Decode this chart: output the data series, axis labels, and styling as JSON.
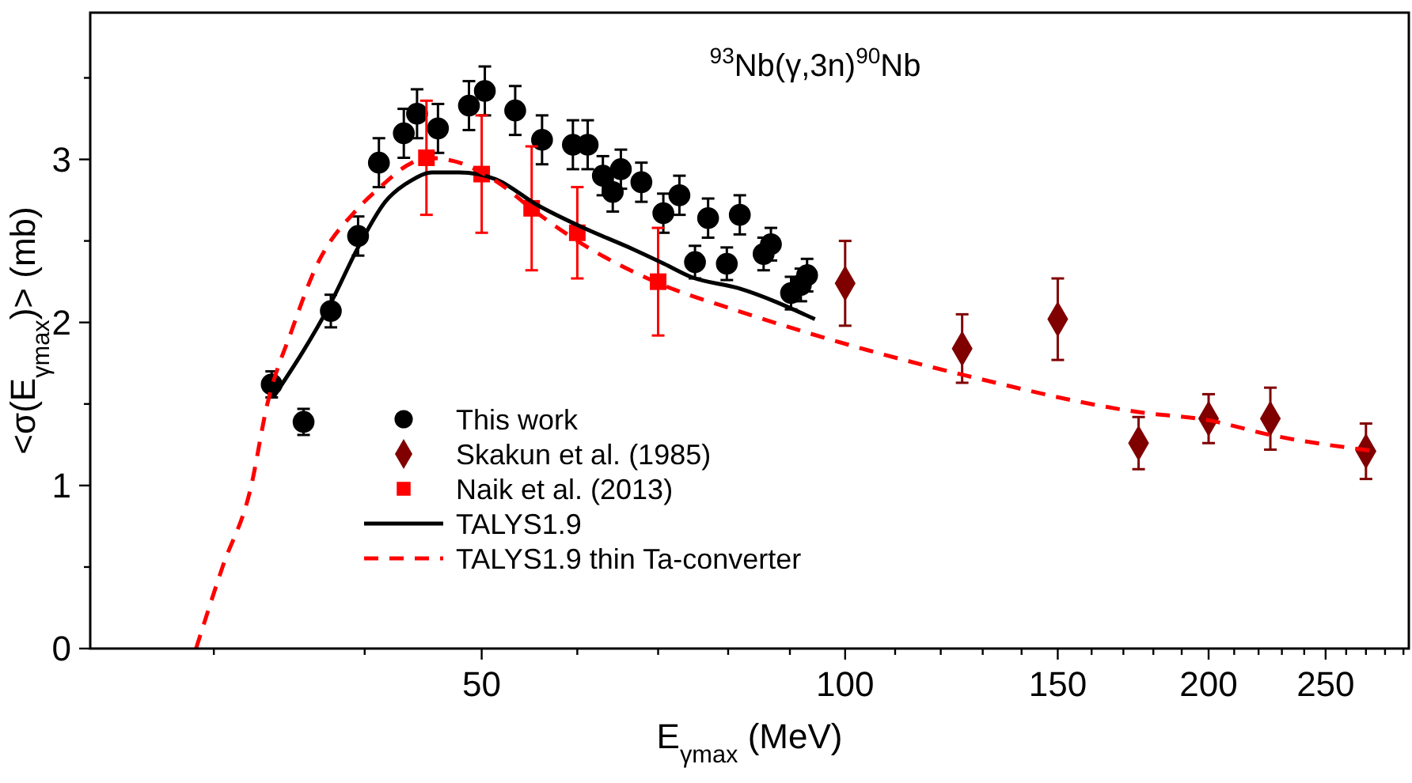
{
  "chart_data": {
    "type": "scatter",
    "title": "$^{93}$Nb(γ,3n)$^{90}$Nb",
    "xlabel": "E$_{γmax}$ (MeV)",
    "ylabel": "<σ(E$_{γmax}$)> (mb)",
    "log": "x",
    "grid": false,
    "legend": "bottom left",
    "xlim": [
      23.7,
      293
    ],
    "ylim": [
      0,
      3.9
    ],
    "xticks": [
      {
        "value": 30,
        "label": null
      },
      {
        "value": 40,
        "label": null
      },
      50,
      {
        "value": 60,
        "label": null
      },
      {
        "value": 70,
        "label": null
      },
      {
        "value": 80,
        "label": null
      },
      {
        "value": 90,
        "label": null
      },
      100,
      {
        "value": 110,
        "label": null
      },
      {
        "value": 120,
        "label": null
      },
      {
        "value": 130,
        "label": null
      },
      {
        "value": 140,
        "label": null
      },
      150,
      {
        "value": 160,
        "label": null
      },
      {
        "value": 170,
        "label": null
      },
      {
        "value": 180,
        "label": null
      },
      {
        "value": 190,
        "label": null
      },
      200,
      {
        "value": 210,
        "label": null
      },
      {
        "value": 220,
        "label": null
      },
      {
        "value": 230,
        "label": null
      },
      {
        "value": 240,
        "label": null
      },
      250,
      {
        "value": 260,
        "label": null
      },
      {
        "value": 270,
        "label": null
      },
      {
        "value": 280,
        "label": null
      },
      {
        "value": 290,
        "label": null
      }
    ],
    "yticks": [
      0,
      {
        "value": 0.5,
        "label": null
      },
      1,
      {
        "value": 1.5,
        "label": null
      },
      2,
      {
        "value": 2.5,
        "label": null
      },
      3,
      {
        "value": 3.5,
        "label": null
      }
    ],
    "series": [
      {
        "name": "This work",
        "marker": "circle",
        "color": "#000000",
        "x": [
          33.5,
          35.6,
          37.5,
          39.5,
          41.1,
          43.1,
          44.2,
          46.0,
          48.8,
          50.3,
          53.3,
          56.1,
          59.5,
          61.2,
          63.0,
          64.2,
          65.2,
          67.8,
          70.7,
          72.9,
          75.1,
          77.0,
          79.8,
          81.8,
          85.6,
          86.8,
          90.2,
          91.9,
          93.0
        ],
        "values": [
          1.62,
          1.39,
          2.07,
          2.53,
          2.98,
          3.16,
          3.28,
          3.19,
          3.33,
          3.42,
          3.3,
          3.12,
          3.09,
          3.09,
          2.9,
          2.8,
          2.94,
          2.86,
          2.67,
          2.78,
          2.37,
          2.64,
          2.36,
          2.66,
          2.42,
          2.48,
          2.18,
          2.23,
          2.29
        ],
        "errors": [
          0.08,
          0.08,
          0.1,
          0.12,
          0.15,
          0.15,
          0.15,
          0.15,
          0.15,
          0.15,
          0.15,
          0.15,
          0.15,
          0.15,
          0.12,
          0.12,
          0.12,
          0.12,
          0.12,
          0.12,
          0.1,
          0.12,
          0.1,
          0.12,
          0.1,
          0.1,
          0.1,
          0.1,
          0.1
        ]
      },
      {
        "name": "Skakun et al. (1985)",
        "marker": "diamond",
        "color": "#800000",
        "x": [
          100,
          125,
          150,
          175,
          200,
          225,
          270
        ],
        "values": [
          2.24,
          1.84,
          2.02,
          1.26,
          1.41,
          1.41,
          1.21
        ],
        "errors": [
          0.26,
          0.21,
          0.25,
          0.16,
          0.15,
          0.19,
          0.17
        ]
      },
      {
        "name": "Naik et al. (2013)",
        "marker": "square",
        "color": "#ff0000",
        "x": [
          45,
          50,
          55,
          60,
          70
        ],
        "values": [
          3.01,
          2.91,
          2.7,
          2.55,
          2.25
        ],
        "errors": [
          0.35,
          0.36,
          0.38,
          0.28,
          0.33
        ]
      },
      {
        "name": "TALYS1.9",
        "type": "line",
        "line_style": "solid",
        "color": "#000000",
        "x": [
          33.6,
          37.5,
          39.5,
          41.6,
          43.7,
          45.5,
          47.9,
          51.3,
          55.6,
          60.3,
          66.7,
          70.8,
          74.5,
          81.6,
          94.4
        ],
        "values": [
          1.54,
          2.12,
          2.46,
          2.74,
          2.87,
          2.92,
          2.92,
          2.88,
          2.72,
          2.59,
          2.45,
          2.36,
          2.28,
          2.21,
          2.02
        ]
      },
      {
        "name": "TALYS1.9 thin Ta-converter",
        "type": "line",
        "line_style": "dashed",
        "color": "#ff0000",
        "x": [
          29.0,
          30.5,
          32.2,
          33.2,
          34.8,
          36.4,
          39.5,
          41.2,
          43.3,
          45.0,
          47.4,
          51.3,
          55.6,
          60.3,
          70.1,
          81.6,
          104.4,
          125,
          175,
          200,
          225,
          275
        ],
        "values": [
          0,
          0.5,
          0.99,
          1.49,
          1.95,
          2.33,
          2.7,
          2.83,
          2.96,
          3.01,
          2.99,
          2.87,
          2.67,
          2.49,
          2.24,
          2.07,
          1.83,
          1.68,
          1.45,
          1.4,
          1.31,
          1.21
        ]
      }
    ]
  }
}
